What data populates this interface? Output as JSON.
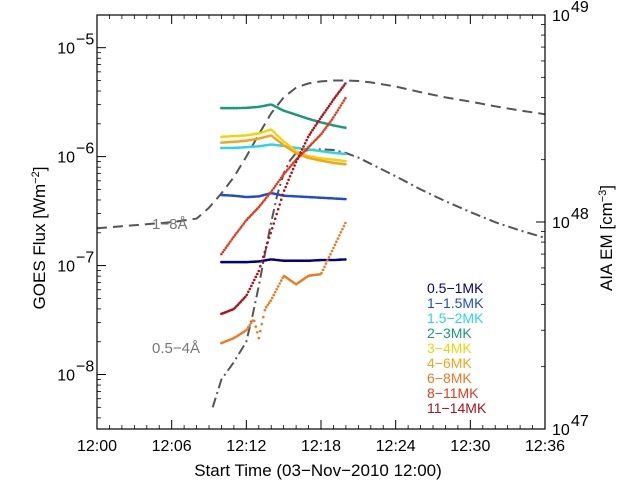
{
  "chart_data": {
    "type": "line",
    "xlabel": "Start Time (03−Nov−2010 12:00)",
    "ylabel_left": "GOES Flux [Wm",
    "ylabel_left_sup": "−2",
    "ylabel_left_end": "]",
    "ylabel_right": "AIA EM [cm",
    "ylabel_right_sup": "−3",
    "ylabel_right_end": "]",
    "x_range_min": [
      0,
      36
    ],
    "x_ticks": [
      {
        "value": 0,
        "label": "12:00"
      },
      {
        "value": 6,
        "label": "12:06"
      },
      {
        "value": 12,
        "label": "12:12"
      },
      {
        "value": 18,
        "label": "12:18"
      },
      {
        "value": 24,
        "label": "12:24"
      },
      {
        "value": 30,
        "label": "12:30"
      },
      {
        "value": 36,
        "label": "12:36"
      }
    ],
    "y_left_log_range": [
      -8.5,
      -4.7
    ],
    "y_left_ticks": [
      {
        "exp": -8,
        "base": "10",
        "sup": "−8"
      },
      {
        "exp": -7,
        "base": "10",
        "sup": "−7"
      },
      {
        "exp": -6,
        "base": "10",
        "sup": "−6"
      },
      {
        "exp": -5,
        "base": "10",
        "sup": "−5"
      }
    ],
    "y_right_log_range": [
      47,
      49
    ],
    "y_right_ticks": [
      {
        "exp": 47,
        "base": "10",
        "sup": "47"
      },
      {
        "exp": 48,
        "base": "10",
        "sup": "48"
      },
      {
        "exp": 49,
        "base": "10",
        "sup": "49"
      }
    ],
    "annotations": [
      {
        "text": "1−8Å"
      },
      {
        "text": "0.5−4Å"
      }
    ],
    "goes_series": [
      {
        "name": "1−8Å",
        "style": "dashed",
        "color": "#555555",
        "points": [
          [
            0,
            2.2e-07
          ],
          [
            3,
            2.35e-07
          ],
          [
            6,
            2.5e-07
          ],
          [
            8,
            2.7e-07
          ],
          [
            9,
            3.4e-07
          ],
          [
            10,
            4.6e-07
          ],
          [
            11,
            6.5e-07
          ],
          [
            12,
            1e-06
          ],
          [
            13,
            1.6e-06
          ],
          [
            14,
            2.5e-06
          ],
          [
            15,
            3.5e-06
          ],
          [
            16,
            4.3e-06
          ],
          [
            17,
            4.7e-06
          ],
          [
            18,
            4.9e-06
          ],
          [
            19,
            5e-06
          ],
          [
            20,
            5e-06
          ],
          [
            21,
            4.95e-06
          ],
          [
            22,
            4.8e-06
          ],
          [
            24,
            4.4e-06
          ],
          [
            26,
            3.9e-06
          ],
          [
            28,
            3.5e-06
          ],
          [
            30,
            3.2e-06
          ],
          [
            32,
            2.9e-06
          ],
          [
            34,
            2.65e-06
          ],
          [
            36,
            2.45e-06
          ]
        ]
      },
      {
        "name": "0.5−4Å",
        "style": "dashdot",
        "color": "#555555",
        "points": [
          [
            9.3,
            5e-09
          ],
          [
            10,
            9e-09
          ],
          [
            11,
            1.3e-08
          ],
          [
            12,
            2e-08
          ],
          [
            12.5,
            3.5e-08
          ],
          [
            13,
            6.5e-08
          ],
          [
            13.5,
            1.3e-07
          ],
          [
            14,
            2.5e-07
          ],
          [
            14.5,
            4.5e-07
          ],
          [
            15,
            7e-07
          ],
          [
            15.5,
            9.2e-07
          ],
          [
            16,
            1.08e-06
          ],
          [
            17,
            1.15e-06
          ],
          [
            18,
            1.17e-06
          ],
          [
            19,
            1.15e-06
          ],
          [
            20,
            1.08e-06
          ],
          [
            21,
            9.8e-07
          ],
          [
            22,
            8.6e-07
          ],
          [
            24,
            6.6e-07
          ],
          [
            26,
            5e-07
          ],
          [
            28,
            3.9e-07
          ],
          [
            30,
            3.1e-07
          ],
          [
            32,
            2.5e-07
          ],
          [
            34,
            2.1e-07
          ],
          [
            36,
            1.8e-07
          ]
        ]
      }
    ],
    "aia_series": [
      {
        "name": "0.5−1MK",
        "color": "#000080",
        "points": [
          [
            10,
            6.4e+47
          ],
          [
            11,
            6.4e+47
          ],
          [
            12,
            6.4e+47
          ],
          [
            13,
            6.45e+47
          ],
          [
            14,
            6.6e+47
          ],
          [
            15,
            6.5e+47
          ],
          [
            16,
            6.5e+47
          ],
          [
            17,
            6.5e+47
          ],
          [
            18,
            6.55e+47
          ],
          [
            19,
            6.55e+47
          ],
          [
            20,
            6.6e+47
          ]
        ]
      },
      {
        "name": "1−1.5MK",
        "color": "#1c4cd6",
        "points": [
          [
            10,
            1.35e+48
          ],
          [
            11,
            1.34e+48
          ],
          [
            12,
            1.32e+48
          ],
          [
            13,
            1.33e+48
          ],
          [
            14,
            1.38e+48
          ],
          [
            15,
            1.34e+48
          ],
          [
            16,
            1.33e+48
          ],
          [
            17,
            1.32e+48
          ],
          [
            18,
            1.31e+48
          ],
          [
            19,
            1.3e+48
          ],
          [
            20,
            1.29e+48
          ]
        ]
      },
      {
        "name": "1.5−2MK",
        "color": "#29d6e8",
        "points": [
          [
            10,
            2.28e+48
          ],
          [
            11,
            2.28e+48
          ],
          [
            12,
            2.3e+48
          ],
          [
            13,
            2.32e+48
          ],
          [
            14,
            2.37e+48
          ],
          [
            15,
            2.33e+48
          ],
          [
            16,
            2.28e+48
          ],
          [
            17,
            2.24e+48
          ],
          [
            18,
            2.2e+48
          ],
          [
            19,
            2.16e+48
          ],
          [
            20,
            2.13e+48
          ]
        ]
      },
      {
        "name": "2−3MK",
        "color": "#1a9a7a",
        "points": [
          [
            10,
            3.55e+48
          ],
          [
            11,
            3.55e+48
          ],
          [
            12,
            3.56e+48
          ],
          [
            13,
            3.6e+48
          ],
          [
            14,
            3.7e+48
          ],
          [
            15,
            3.45e+48
          ],
          [
            16,
            3.3e+48
          ],
          [
            17,
            3.15e+48
          ],
          [
            18,
            3.03e+48
          ],
          [
            19,
            2.93e+48
          ],
          [
            20,
            2.85e+48
          ]
        ]
      },
      {
        "name": "3−4MK",
        "color": "#f4d20a",
        "points": [
          [
            10,
            2.58e+48
          ],
          [
            11,
            2.6e+48
          ],
          [
            12,
            2.62e+48
          ],
          [
            13,
            2.68e+48
          ],
          [
            14,
            2.8e+48
          ],
          [
            15,
            2.45e+48
          ],
          [
            16,
            2.2e+48
          ],
          [
            17,
            2.08e+48
          ],
          [
            18,
            2.03e+48
          ],
          [
            19,
            2e+48
          ],
          [
            20,
            1.97e+48
          ]
        ]
      },
      {
        "name": "4−6MK",
        "color": "#f4a41a",
        "points": [
          [
            10,
            2.42e+48
          ],
          [
            11,
            2.44e+48
          ],
          [
            12,
            2.47e+48
          ],
          [
            13,
            2.53e+48
          ],
          [
            14,
            2.62e+48
          ],
          [
            15,
            2.35e+48
          ],
          [
            16,
            2.15e+48
          ],
          [
            17,
            2.04e+48
          ],
          [
            18,
            1.98e+48
          ],
          [
            19,
            1.93e+48
          ],
          [
            20,
            1.9e+48
          ]
        ]
      },
      {
        "name": "6−8MK",
        "color": "#ee7a1e",
        "points": [
          [
            10,
            2.6e+47
          ],
          [
            11,
            2.75e+47
          ],
          [
            12,
            3e+47
          ],
          [
            12.6,
            3.4e+47
          ],
          [
            13,
            2.75e+47
          ],
          [
            13.5,
            3.8e+47
          ],
          [
            14,
            4.2e+47
          ],
          [
            15,
            5.5e+47
          ],
          [
            16,
            5e+47
          ],
          [
            17,
            5.5e+47
          ],
          [
            18,
            5.6e+47
          ],
          [
            19,
            7.5e+47
          ],
          [
            20,
            1e+48
          ]
        ]
      },
      {
        "name": "8−11MK",
        "color": "#e33b1e",
        "points": [
          [
            10,
            7e+47
          ],
          [
            11,
            8.5e+47
          ],
          [
            12,
            1.02e+48
          ],
          [
            13,
            1.18e+48
          ],
          [
            14,
            1.4e+48
          ],
          [
            15,
            1.7e+48
          ],
          [
            16,
            2e+48
          ],
          [
            17,
            2.3e+48
          ],
          [
            18,
            2.65e+48
          ],
          [
            19,
            3.2e+48
          ],
          [
            20,
            4e+48
          ]
        ]
      },
      {
        "name": "11−14MK",
        "color": "#b0101a",
        "points": [
          [
            10,
            3.6e+47
          ],
          [
            11,
            3.8e+47
          ],
          [
            12,
            4.4e+47
          ],
          [
            13,
            5.8e+47
          ],
          [
            14,
            9e+47
          ],
          [
            15,
            1.4e+48
          ],
          [
            16,
            1.95e+48
          ],
          [
            17,
            2.6e+48
          ],
          [
            18,
            3.2e+48
          ],
          [
            19,
            3.9e+48
          ],
          [
            20,
            4.7e+48
          ]
        ]
      }
    ]
  }
}
